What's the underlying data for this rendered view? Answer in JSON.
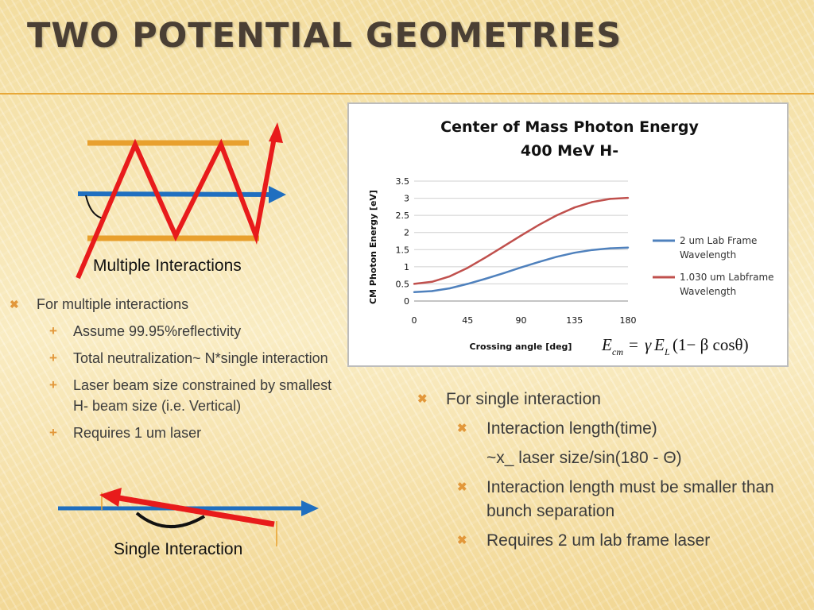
{
  "slide": {
    "title": "TWO POTENTIAL GEOMETRIES"
  },
  "diagrams": {
    "multiple_label": "Multiple Interactions",
    "single_label": "Single Interaction",
    "colors": {
      "mirror": "#e8a02e",
      "h_beam": "#1f6fc0",
      "laser": "#e81b1b",
      "angle_arc": "#111111"
    }
  },
  "left_bullets": {
    "main": "For multiple interactions",
    "subs": [
      "Assume 99.95%reflectivity",
      "Total neutralization~ N*single interaction",
      "Laser beam size constrained by smallest H- beam size (i.e. Vertical)",
      "Requires 1 um laser"
    ]
  },
  "right_bullets": {
    "main": "For single interaction",
    "subs": [
      {
        "text": "Interaction length(time)",
        "marker": true
      },
      {
        "text": "~x_ laser size/sin(180 - Θ)",
        "marker": false
      },
      {
        "text": "Interaction length must be smaller than bunch separation",
        "marker": true
      },
      {
        "text": "Requires 2 um lab frame laser",
        "marker": true
      }
    ]
  },
  "chart_data": {
    "type": "line",
    "title_line1": "Center of Mass Photon Energy",
    "title_line2": "400 MeV H-",
    "xlabel": "Crossing angle [deg]",
    "ylabel": "CM Photon Energy [eV]",
    "xlim": [
      0,
      180
    ],
    "ylim": [
      0,
      3.5
    ],
    "xticks": [
      0,
      45,
      90,
      135,
      180
    ],
    "yticks": [
      0,
      0.5,
      1,
      1.5,
      2,
      2.5,
      3,
      3.5
    ],
    "grid": true,
    "legend_position": "right",
    "series": [
      {
        "name": "2 um Lab Frame Wavelength",
        "color": "#4f81bd",
        "x": [
          0,
          15,
          30,
          45,
          60,
          75,
          90,
          105,
          120,
          135,
          150,
          165,
          180
        ],
        "y": [
          0.26,
          0.29,
          0.37,
          0.5,
          0.65,
          0.81,
          0.98,
          1.14,
          1.29,
          1.41,
          1.49,
          1.54,
          1.56
        ]
      },
      {
        "name": "1.030 um Labframe Wavelength",
        "color": "#c0504d",
        "x": [
          0,
          15,
          30,
          45,
          60,
          75,
          90,
          105,
          120,
          135,
          150,
          165,
          180
        ],
        "y": [
          0.5,
          0.56,
          0.72,
          0.97,
          1.27,
          1.59,
          1.91,
          2.22,
          2.5,
          2.73,
          2.89,
          2.98,
          3.01
        ]
      }
    ],
    "annotation": {
      "E": "E",
      "cm": "cm",
      "gamma": "γ",
      "EL": "E",
      "L": "L",
      "tail": "(1− β cosθ)",
      "eq": "="
    }
  }
}
